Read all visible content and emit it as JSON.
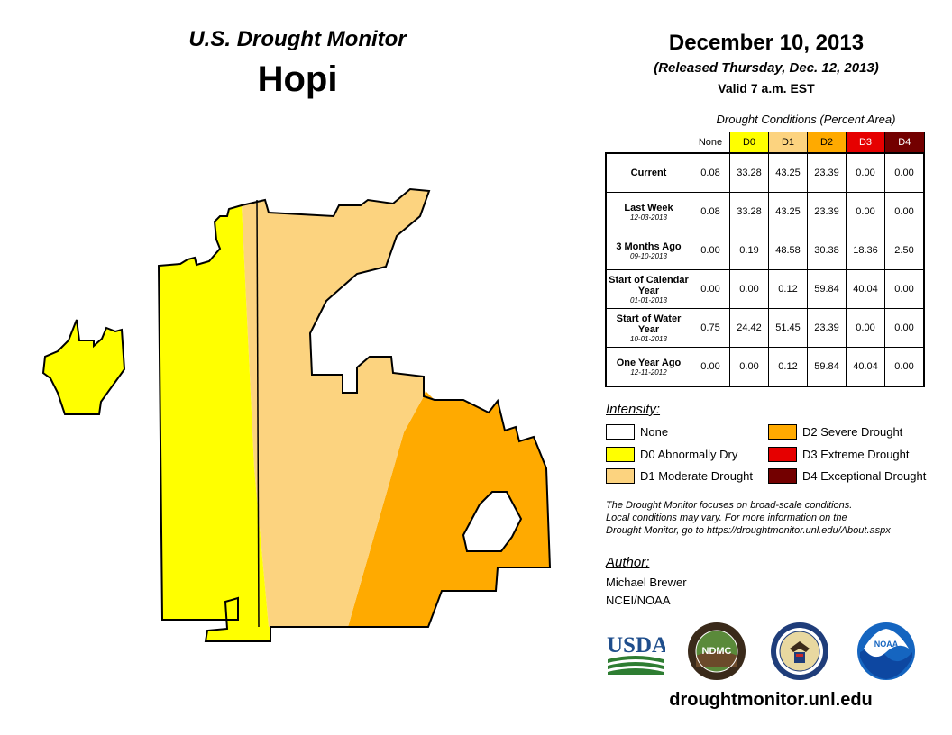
{
  "header": {
    "title": "U.S. Drought Monitor",
    "region": "Hopi",
    "date": "December 10, 2013",
    "released": "(Released Thursday, Dec. 12, 2013)",
    "valid": "Valid 7 a.m. EST"
  },
  "table": {
    "caption": "Drought Conditions (Percent Area)",
    "columns": [
      "None",
      "D0",
      "D1",
      "D2",
      "D3",
      "D4"
    ],
    "column_colors": [
      "#ffffff",
      "#ffff00",
      "#fcd37f",
      "#ffaa00",
      "#e60000",
      "#730000"
    ],
    "rows": [
      {
        "label": "Current",
        "sub": "",
        "values": [
          "0.08",
          "33.28",
          "43.25",
          "23.39",
          "0.00",
          "0.00"
        ]
      },
      {
        "label": "Last Week",
        "sub": "12-03-2013",
        "values": [
          "0.08",
          "33.28",
          "43.25",
          "23.39",
          "0.00",
          "0.00"
        ]
      },
      {
        "label": "3 Months Ago",
        "sub": "09-10-2013",
        "values": [
          "0.00",
          "0.19",
          "48.58",
          "30.38",
          "18.36",
          "2.50"
        ]
      },
      {
        "label": "Start of Calendar Year",
        "sub": "01-01-2013",
        "values": [
          "0.00",
          "0.00",
          "0.12",
          "59.84",
          "40.04",
          "0.00"
        ]
      },
      {
        "label": "Start of Water Year",
        "sub": "10-01-2013",
        "values": [
          "0.75",
          "24.42",
          "51.45",
          "23.39",
          "0.00",
          "0.00"
        ]
      },
      {
        "label": "One Year Ago",
        "sub": "12-11-2012",
        "values": [
          "0.00",
          "0.00",
          "0.12",
          "59.84",
          "40.04",
          "0.00"
        ]
      }
    ]
  },
  "legend": {
    "title": "Intensity:",
    "items": [
      {
        "label": "None",
        "color": "#ffffff"
      },
      {
        "label": "D0 Abnormally Dry",
        "color": "#ffff00"
      },
      {
        "label": "D1 Moderate Drought",
        "color": "#fcd37f"
      },
      {
        "label": "D2 Severe Drought",
        "color": "#ffaa00"
      },
      {
        "label": "D3 Extreme Drought",
        "color": "#e60000"
      },
      {
        "label": "D4 Exceptional Drought",
        "color": "#730000"
      }
    ]
  },
  "note": {
    "line1": "The Drought Monitor focuses on broad-scale conditions.",
    "line2": "Local conditions may vary. For more information on the",
    "line3": "Drought Monitor, go to https://droughtmonitor.unl.edu/About.aspx"
  },
  "author": {
    "heading": "Author:",
    "name": "Michael Brewer",
    "org": "NCEI/NOAA"
  },
  "logos": {
    "usda": "USDA",
    "ndmc": "NDMC",
    "noaa": "NOAA"
  },
  "footer": {
    "url": "droughtmonitor.unl.edu"
  }
}
